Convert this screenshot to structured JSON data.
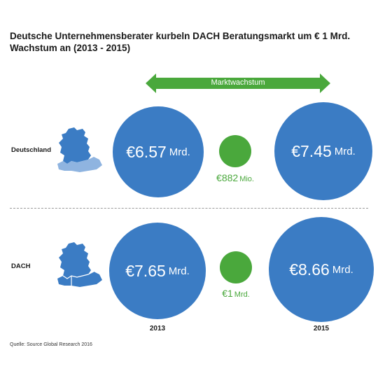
{
  "chart_data": {
    "type": "bubble",
    "title": "Deutsche Unternehmensberater kurbeln DACH Beratungsmarkt um € 1 Mrd. Wachstum an (2013 - 2015)",
    "arrow_label": "Marktwachstum",
    "categories": [
      "2013",
      "2015"
    ],
    "unit": "Mrd.",
    "series": [
      {
        "name": "Deutschland",
        "values": [
          6.57,
          7.45
        ],
        "labels": [
          {
            "num": "€6.57",
            "unit": "Mrd."
          },
          {
            "num": "€7.45",
            "unit": "Mrd."
          }
        ],
        "growth": {
          "num": "€882",
          "unit": "Mio."
        }
      },
      {
        "name": "DACH",
        "values": [
          7.65,
          8.66
        ],
        "labels": [
          {
            "num": "€7.65",
            "unit": "Mrd."
          },
          {
            "num": "€8.66",
            "unit": "Mrd."
          }
        ],
        "growth": {
          "num": "€1",
          "unit": "Mrd."
        }
      }
    ],
    "source": "Quelle: Source Global Research 2016"
  },
  "colors": {
    "bubble": "#3b7cc4",
    "growth": "#4aa83c",
    "map": "#3b7cc4",
    "map_highlight": "#8fb4e0"
  }
}
